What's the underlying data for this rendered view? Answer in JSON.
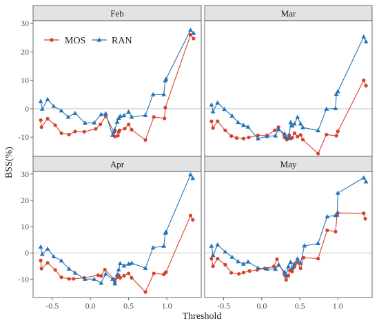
{
  "chart_data": {
    "type": "line",
    "xlabel": "Threshold",
    "ylabel": "BSS(%)",
    "xlim": [
      -0.75,
      1.45
    ],
    "ylim": [
      -17,
      31
    ],
    "x_ticks": [
      -0.5,
      0,
      0.5,
      1
    ],
    "x_tick_labels": [
      "-0.5",
      "0.0",
      "0.5",
      "1.0"
    ],
    "y_ticks": [
      -10,
      0,
      10,
      20,
      30
    ],
    "y_tick_labels": [
      "-10",
      "0",
      "10",
      "20",
      "30"
    ],
    "zero_line": 0,
    "legend": {
      "placement": "top-left (inside Feb panel)",
      "entries": [
        "MOS",
        "RAN"
      ]
    },
    "colors": {
      "MOS": "#d7412c",
      "RAN": "#2473b8"
    },
    "markers": {
      "MOS": "circle",
      "RAN": "triangle"
    },
    "panels": [
      {
        "title": "Feb",
        "series": [
          {
            "name": "MOS",
            "x": [
              -0.65,
              -0.64,
              -0.56,
              -0.46,
              -0.38,
              -0.28,
              -0.2,
              -0.08,
              0.07,
              0.13,
              0.2,
              0.31,
              0.32,
              0.36,
              0.37,
              0.38,
              0.45,
              0.5,
              0.54,
              0.72,
              0.83,
              0.97,
              0.98,
              1.31,
              1.35
            ],
            "y": [
              -4,
              -6.5,
              -3.5,
              -5.8,
              -8.6,
              -9.1,
              -8.0,
              -8.1,
              -7.1,
              -5.5,
              -2.6,
              -8.3,
              -9.8,
              -9.5,
              -8.2,
              -7.6,
              -7.0,
              -5.5,
              -7.4,
              -11.0,
              -2.9,
              -3.4,
              0.4,
              26.0,
              24.7
            ]
          },
          {
            "name": "RAN",
            "x": [
              -0.65,
              -0.63,
              -0.56,
              -0.48,
              -0.38,
              -0.29,
              -0.2,
              -0.07,
              0.05,
              0.14,
              0.2,
              0.29,
              0.32,
              0.35,
              0.37,
              0.39,
              0.44,
              0.5,
              0.54,
              0.72,
              0.82,
              0.96,
              0.98,
              0.99,
              1.31,
              1.35
            ],
            "y": [
              2.6,
              -0.1,
              3.3,
              0.9,
              -0.7,
              -2.9,
              -1.6,
              -5.0,
              -4.9,
              -2.0,
              -1.7,
              -9.3,
              -7.4,
              -4.7,
              -3.3,
              -2.6,
              -2.4,
              -1.1,
              -2.9,
              -2.3,
              5.0,
              5.0,
              9.9,
              10.5,
              27.7,
              26.6
            ]
          }
        ]
      },
      {
        "title": "Mar",
        "series": [
          {
            "name": "MOS",
            "x": [
              -0.66,
              -0.64,
              -0.58,
              -0.48,
              -0.4,
              -0.33,
              -0.24,
              -0.17,
              -0.05,
              0.07,
              0.17,
              0.22,
              0.3,
              0.33,
              0.36,
              0.38,
              0.4,
              0.43,
              0.47,
              0.51,
              0.54,
              0.74,
              0.85,
              0.98,
              1.0,
              1.34,
              1.37
            ],
            "y": [
              -4.4,
              -6.8,
              -4.4,
              -7.6,
              -9.6,
              -10.3,
              -10.5,
              -10.1,
              -9.4,
              -9.4,
              -7.6,
              -6.5,
              -10.1,
              -10.9,
              -9.3,
              -10.5,
              -10.2,
              -8.6,
              -9.8,
              -9.2,
              -10.9,
              -15.8,
              -9.1,
              -9.5,
              -8.0,
              10.0,
              8.1
            ]
          },
          {
            "name": "RAN",
            "x": [
              -0.66,
              -0.64,
              -0.58,
              -0.49,
              -0.39,
              -0.31,
              -0.24,
              -0.18,
              -0.05,
              0.07,
              0.18,
              0.22,
              0.3,
              0.33,
              0.36,
              0.38,
              0.4,
              0.43,
              0.47,
              0.51,
              0.54,
              0.74,
              0.85,
              0.97,
              0.98,
              1.0,
              1.34,
              1.37
            ],
            "y": [
              1.4,
              -1.0,
              2.1,
              -0.2,
              -2.5,
              -4.8,
              -5.8,
              -6.4,
              -10.5,
              -9.7,
              -9.5,
              -7.3,
              -8.8,
              -10.3,
              -10.1,
              -4.8,
              -6.0,
              -5.3,
              -3.0,
              -5.3,
              -6.6,
              -7.7,
              -0.1,
              0.1,
              5.2,
              6.1,
              25.3,
              23.6
            ]
          }
        ]
      },
      {
        "title": "Apr",
        "series": [
          {
            "name": "MOS",
            "x": [
              -0.65,
              -0.64,
              -0.56,
              -0.46,
              -0.38,
              -0.28,
              -0.22,
              -0.08,
              0.1,
              0.14,
              0.19,
              0.31,
              0.32,
              0.36,
              0.37,
              0.39,
              0.44,
              0.5,
              0.54,
              0.72,
              0.83,
              0.96,
              0.98,
              0.99,
              1.31,
              1.34
            ],
            "y": [
              -2.9,
              -6.0,
              -3.8,
              -6.5,
              -9.3,
              -9.9,
              -9.9,
              -9.5,
              -8.5,
              -8.8,
              -6.4,
              -10.0,
              -11.3,
              -9.2,
              -8.5,
              -9.5,
              -8.7,
              -7.8,
              -9.5,
              -14.9,
              -7.8,
              -8.2,
              -7.6,
              -7.3,
              14.2,
              12.6
            ]
          },
          {
            "name": "RAN",
            "x": [
              -0.65,
              -0.63,
              -0.56,
              -0.48,
              -0.38,
              -0.28,
              -0.2,
              -0.07,
              0.05,
              0.14,
              0.2,
              0.29,
              0.32,
              0.35,
              0.37,
              0.39,
              0.44,
              0.5,
              0.54,
              0.72,
              0.82,
              0.96,
              0.98,
              0.99,
              1.31,
              1.34
            ],
            "y": [
              2.3,
              -0.5,
              1.5,
              -1.4,
              -3.0,
              -6.1,
              -7.6,
              -10.0,
              -10.0,
              -11.5,
              -8.0,
              -10.0,
              -11.7,
              -8.4,
              -6.4,
              -4.0,
              -4.9,
              -4.2,
              -3.9,
              -5.8,
              2.0,
              2.6,
              7.6,
              8.0,
              29.8,
              28.4
            ]
          }
        ]
      },
      {
        "title": "May",
        "series": [
          {
            "name": "MOS",
            "x": [
              -0.66,
              -0.64,
              -0.58,
              -0.48,
              -0.4,
              -0.3,
              -0.24,
              -0.16,
              -0.06,
              0.04,
              0.16,
              0.2,
              0.3,
              0.32,
              0.35,
              0.37,
              0.4,
              0.43,
              0.47,
              0.51,
              0.55,
              0.74,
              0.86,
              0.97,
              0.99,
              1.0,
              1.34,
              1.36
            ],
            "y": [
              -2.2,
              -5.1,
              -2.2,
              -4.5,
              -7.6,
              -8.0,
              -7.5,
              -6.9,
              -6.5,
              -5.9,
              -5.2,
              -2.4,
              -8.4,
              -10.3,
              -8.7,
              -6.7,
              -7.1,
              -5.3,
              -3.6,
              -5.9,
              -1.8,
              -2.2,
              8.6,
              8.1,
              14.7,
              15.2,
              15.1,
              13.0
            ]
          },
          {
            "name": "RAN",
            "x": [
              -0.66,
              -0.64,
              -0.58,
              -0.48,
              -0.39,
              -0.31,
              -0.24,
              -0.18,
              -0.05,
              0.07,
              0.18,
              0.22,
              0.3,
              0.32,
              0.35,
              0.38,
              0.4,
              0.43,
              0.47,
              0.51,
              0.56,
              0.74,
              0.86,
              0.97,
              0.99,
              1.0,
              1.34,
              1.37
            ],
            "y": [
              2.6,
              -0.9,
              3.1,
              0.4,
              -1.6,
              -3.3,
              -4.2,
              -3.4,
              -5.7,
              -6.1,
              -6.2,
              -4.6,
              -7.3,
              -8.7,
              -5.2,
              -3.5,
              -5.8,
              -4.1,
              -2.2,
              -3.9,
              2.7,
              3.6,
              13.8,
              14.3,
              14.4,
              22.8,
              28.6,
              27.1
            ]
          }
        ]
      }
    ]
  }
}
